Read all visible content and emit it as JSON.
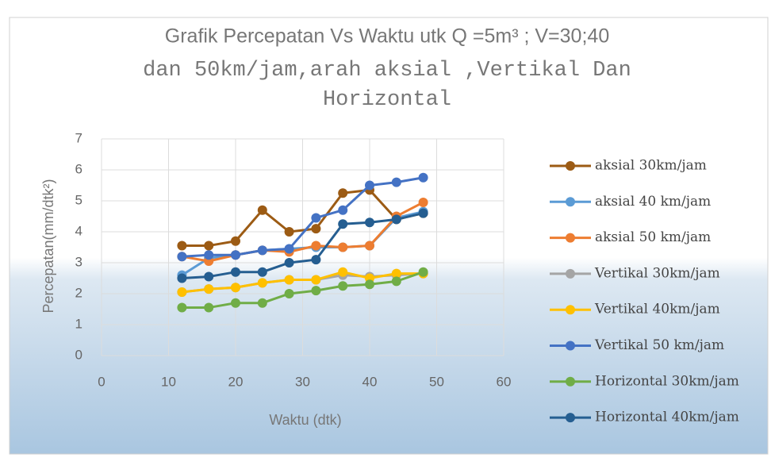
{
  "chart_data": {
    "type": "line",
    "title": [
      "Grafik Percepatan Vs Waktu utk Q =5m³ ; V=30;40",
      "dan 50km/jam,arah aksial ,Vertikal Dan",
      "Horizontal"
    ],
    "x_label": "Waktu (dtk)",
    "y_label": "Percepatan(mm/dtk²)",
    "x": [
      12,
      16,
      20,
      24,
      28,
      32,
      36,
      40,
      44,
      48
    ],
    "xlim": [
      0,
      60
    ],
    "xticks": [
      0,
      10,
      20,
      30,
      40,
      50,
      60
    ],
    "ylim": [
      0,
      7
    ],
    "yticks": [
      0,
      1,
      2,
      3,
      4,
      5,
      6,
      7
    ],
    "grid": true,
    "legend": "right",
    "series": [
      {
        "name": "aksial 30km/jam",
        "color": "#9c5b14",
        "values": [
          3.55,
          3.55,
          3.7,
          4.7,
          4.0,
          4.1,
          5.25,
          5.35,
          4.4,
          4.6
        ]
      },
      {
        "name": "aksial 40 km/jam",
        "color": "#5b9bd5",
        "values": [
          2.6,
          3.15,
          3.25,
          3.4,
          3.45,
          3.5,
          3.5,
          3.55,
          4.45,
          4.65
        ]
      },
      {
        "name": "aksial 50 km/jam",
        "color": "#ed7d31",
        "values": [
          3.2,
          3.05,
          3.25,
          3.4,
          3.35,
          3.55,
          3.5,
          3.55,
          4.5,
          4.95
        ]
      },
      {
        "name": "Vertikal 30km/jam",
        "color": "#a5a5a5",
        "values": [
          2.05,
          2.15,
          2.2,
          2.35,
          2.45,
          2.45,
          2.6,
          2.55,
          2.6,
          2.65
        ]
      },
      {
        "name": "Vertikal 40km/jam",
        "color": "#ffc000",
        "values": [
          2.05,
          2.15,
          2.2,
          2.35,
          2.45,
          2.45,
          2.7,
          2.5,
          2.65,
          2.65
        ]
      },
      {
        "name": "Vertikal 50 km/jam",
        "color": "#4472c4",
        "values": [
          3.2,
          3.25,
          3.25,
          3.4,
          3.45,
          4.45,
          4.7,
          5.5,
          5.6,
          5.75
        ]
      },
      {
        "name": "Horizontal 30km/jam",
        "color": "#70ad47",
        "values": [
          1.55,
          1.55,
          1.7,
          1.7,
          2.0,
          2.1,
          2.25,
          2.3,
          2.4,
          2.7
        ]
      },
      {
        "name": "Horizontal 40km/jam",
        "color": "#255e91",
        "values": [
          2.5,
          2.55,
          2.7,
          2.7,
          3.0,
          3.1,
          4.25,
          4.3,
          4.4,
          4.6
        ]
      }
    ]
  }
}
